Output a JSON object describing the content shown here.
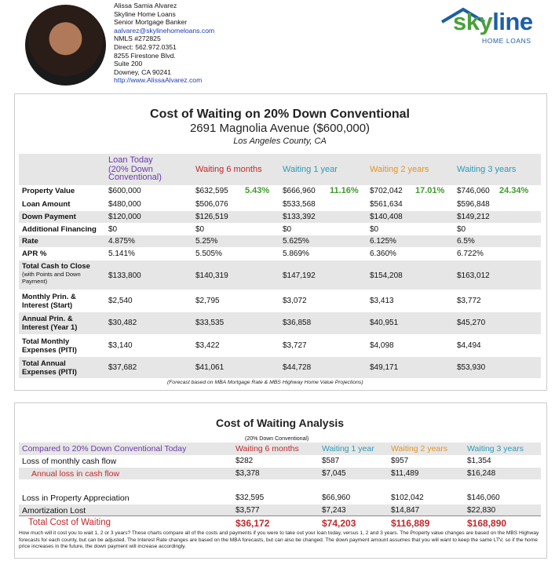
{
  "agent": {
    "name": "Alissa Samia Alvarez",
    "company": "Skyline Home Loans",
    "title": "Senior Mortgage Banker",
    "email": "aalvarez@skylinehomeloans.com",
    "nmls": "NMLS #272825",
    "direct": "Direct: 562.972.0351",
    "address1": "8255 Firestone Blvd.",
    "address2": "Suite 200",
    "address3": "Downey, CA 90241",
    "website": "http://www.AlissaAlvarez.com"
  },
  "logo": {
    "word_a": "sky",
    "word_b": "line",
    "sub": "HOME LOANS",
    "reg": "®"
  },
  "cost": {
    "title": "Cost of Waiting on 20% Down Conventional",
    "address": "2691 Magnolia Avenue ($600,000)",
    "county": "Los Angeles County, CA",
    "headers": {
      "today": "Loan Today",
      "today_sub1": "(20% Down",
      "today_sub2": "Conventional)",
      "m6": "Waiting 6 months",
      "y1": "Waiting 1 year",
      "y2": "Waiting 2 years",
      "y3": "Waiting 3 years"
    },
    "pct": {
      "m6": "5.43%",
      "y1": "11.16%",
      "y2": "17.01%",
      "y3": "24.34%"
    },
    "rows": {
      "property": {
        "label": "Property Value",
        "v": [
          "$600,000",
          "$632,595",
          "$666,960",
          "$702,042",
          "$746,060"
        ]
      },
      "loan": {
        "label": "Loan Amount",
        "v": [
          "$480,000",
          "$506,076",
          "$533,568",
          "$561,634",
          "$596,848"
        ]
      },
      "down": {
        "label": "Down Payment",
        "v": [
          "$120,000",
          "$126,519",
          "$133,392",
          "$140,408",
          "$149,212"
        ]
      },
      "addl": {
        "label": "Additional Financing",
        "v": [
          "$0",
          "$0",
          "$0",
          "$0",
          "$0"
        ]
      },
      "rate": {
        "label": "Rate",
        "v": [
          "4.875%",
          "5.25%",
          "5.625%",
          "6.125%",
          "6.5%"
        ]
      },
      "apr": {
        "label": "APR %",
        "v": [
          "5.141%",
          "5.505%",
          "5.869%",
          "6.360%",
          "6.722%"
        ]
      },
      "cash": {
        "label": "Total Cash to Close",
        "sub1": "(with Points and Down",
        "sub2": "Payment)",
        "v": [
          "$133,800",
          "$140,319",
          "$147,192",
          "$154,208",
          "$163,012"
        ]
      },
      "pi": {
        "label1": "Monthly Prin. &",
        "label2": "Interest (Start)",
        "v": [
          "$2,540",
          "$2,795",
          "$3,072",
          "$3,413",
          "$3,772"
        ]
      },
      "api": {
        "label1": "Annual Prin. &",
        "label2": "Interest (Year 1)",
        "v": [
          "$30,482",
          "$33,535",
          "$36,858",
          "$40,951",
          "$45,270"
        ]
      },
      "tme": {
        "label1": "Total Monthly",
        "label2": "Expenses (PITI)",
        "v": [
          "$3,140",
          "$3,422",
          "$3,727",
          "$4,098",
          "$4,494"
        ]
      },
      "tae": {
        "label1": "Total Annual",
        "label2": "Expenses (PITI)",
        "v": [
          "$37,682",
          "$41,061",
          "$44,728",
          "$49,171",
          "$53,930"
        ]
      }
    },
    "footnote": "(Forecast based on MBA Mortgage Rate & MBS Highway Home Value Projections)"
  },
  "analysis": {
    "title": "Cost of Waiting Analysis",
    "sub": "(20% Down Conventional)",
    "headers": {
      "compared": "Compared to 20% Down Conventional Today",
      "m6": "Waiting 6 months",
      "y1": "Waiting 1 year",
      "y2": "Waiting 2 years",
      "y3": "Waiting 3 years"
    },
    "rows": {
      "loss_monthly": {
        "label": "Loss of monthly cash flow",
        "v": [
          "$282",
          "$587",
          "$957",
          "$1,354"
        ]
      },
      "annual_loss": {
        "label": "Annual loss in cash flow",
        "v": [
          "$3,378",
          "$7,045",
          "$11,489",
          "$16,248"
        ]
      },
      "appreciation": {
        "label": "Loss in Property Appreciation",
        "v": [
          "$32,595",
          "$66,960",
          "$102,042",
          "$146,060"
        ]
      },
      "amort": {
        "label": "Amortization Lost",
        "v": [
          "$3,577",
          "$7,243",
          "$14,847",
          "$22,830"
        ]
      },
      "total": {
        "label": "Total Cost of Waiting",
        "v": [
          "$36,172",
          "$74,203",
          "$116,889",
          "$168,890"
        ]
      }
    },
    "note": "How much will it cost you to wait 1, 2 or 3 years? These charts compare all of the costs and payments if you were to take out your loan today, versus 1, 2 and 3 years. The Property value changes are based on the MBS Highway forecasts for each county, but can be adjusted. The Interest Rate changes are based on the MBA forecasts, but can also be changed. The down payment amount assumes that you will want to keep the same LTV, so if the home price increases in the future, the down payment will increase accordingly."
  }
}
